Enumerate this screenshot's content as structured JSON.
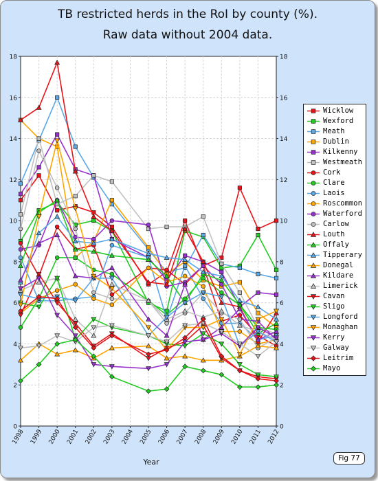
{
  "chart_data": {
    "type": "line",
    "title": "TB restricted herds in the RoI by county (%).",
    "subtitle": "Raw data without 2004 data.",
    "xlabel": "Year",
    "ylabel": "",
    "xlim": [
      1998,
      2012
    ],
    "ylim": [
      0,
      18
    ],
    "x_ticks": [
      "1998",
      "1999",
      "2000",
      "2001",
      "2002",
      "2003",
      "2004",
      "2005",
      "2006",
      "2007",
      "2008",
      "2009",
      "2010",
      "2011",
      "2012"
    ],
    "y_ticks": [
      "0",
      "2",
      "4",
      "6",
      "8",
      "10",
      "12",
      "14",
      "16",
      "18"
    ],
    "x": [
      1998,
      1999,
      2000,
      2001,
      2002,
      2003,
      2005,
      2006,
      2007,
      2008,
      2009,
      2010,
      2011,
      2012
    ],
    "grid": true,
    "legend_position": "right",
    "series": [
      {
        "name": "Wicklow",
        "color": "#e8141a",
        "marker": "square",
        "values": [
          11.0,
          12.2,
          10.5,
          10.7,
          10.4,
          9.7,
          6.9,
          7.5,
          10.0,
          7.8,
          8.2,
          11.6,
          9.6,
          10.0
        ]
      },
      {
        "name": "Wexford",
        "color": "#22cc22",
        "marker": "square",
        "values": [
          9.0,
          10.5,
          10.9,
          9.8,
          10.0,
          9.5,
          6.0,
          5.6,
          9.5,
          9.2,
          7.7,
          7.8,
          9.3,
          7.6
        ]
      },
      {
        "name": "Meath",
        "color": "#5aa7e6",
        "marker": "square",
        "values": [
          11.8,
          13.9,
          16.0,
          13.6,
          12.1,
          10.8,
          8.6,
          7.5,
          7.7,
          9.3,
          7.9,
          7.7,
          7.4,
          7.2
        ]
      },
      {
        "name": "Dublin",
        "color": "#ffa500",
        "marker": "square",
        "values": [
          14.9,
          14.0,
          13.6,
          8.2,
          9.0,
          11.0,
          8.7,
          7.4,
          8.0,
          7.1,
          6.8,
          7.0,
          5.5,
          4.8
        ]
      },
      {
        "name": "Kilkenny",
        "color": "#9932cc",
        "marker": "square",
        "values": [
          11.3,
          12.6,
          14.2,
          12.5,
          12.2,
          9.1,
          8.2,
          7.1,
          8.3,
          8.0,
          7.5,
          5.8,
          6.5,
          6.4
        ]
      },
      {
        "name": "Westmeath",
        "color": "#c0c0c0",
        "marker": "square",
        "values": [
          10.3,
          14.0,
          10.8,
          11.2,
          12.2,
          11.9,
          9.6,
          9.7,
          9.7,
          10.2,
          7.9,
          6.5,
          4.8,
          4.5
        ]
      },
      {
        "name": "Cork",
        "color": "#e8141a",
        "marker": "circle",
        "values": [
          8.9,
          7.3,
          9.7,
          8.6,
          8.8,
          6.4,
          7.7,
          7.6,
          6.9,
          7.8,
          5.1,
          5.4,
          4.4,
          3.9
        ]
      },
      {
        "name": "Clare",
        "color": "#22cc22",
        "marker": "circle",
        "values": [
          4.8,
          6.2,
          8.2,
          8.2,
          7.6,
          7.4,
          6.1,
          5.4,
          6.2,
          7.2,
          6.5,
          5.9,
          4.8,
          4.7
        ]
      },
      {
        "name": "Laois",
        "color": "#5aa7e6",
        "marker": "circle",
        "values": [
          8.2,
          6.1,
          6.1,
          6.2,
          6.3,
          8.8,
          8.2,
          5.2,
          7.8,
          6.2,
          5.0,
          5.0,
          4.2,
          4.4
        ]
      },
      {
        "name": "Roscommon",
        "color": "#ffa500",
        "marker": "circle",
        "values": [
          5.5,
          6.2,
          6.6,
          6.9,
          6.2,
          5.9,
          7.7,
          7.0,
          7.3,
          6.8,
          4.6,
          4.6,
          4.0,
          4.2
        ]
      },
      {
        "name": "Waterford",
        "color": "#9932cc",
        "marker": "circle",
        "values": [
          8.6,
          8.8,
          11.0,
          9.2,
          9.1,
          10.0,
          9.8,
          6.8,
          7.0,
          7.8,
          6.9,
          5.2,
          5.1,
          4.2
        ]
      },
      {
        "name": "Carlow",
        "color": "#c0c0c0",
        "marker": "circle",
        "values": [
          9.6,
          13.4,
          11.6,
          9.6,
          6.5,
          6.2,
          6.1,
          5.0,
          5.5,
          6.5,
          5.5,
          5.2,
          3.8,
          4.3
        ]
      },
      {
        "name": "Louth",
        "color": "#e8141a",
        "marker": "triangle-up",
        "values": [
          14.9,
          15.5,
          17.7,
          12.4,
          10.2,
          9.5,
          7.0,
          6.9,
          9.6,
          8.0,
          6.0,
          5.8,
          4.1,
          5.5
        ]
      },
      {
        "name": "Offaly",
        "color": "#22cc22",
        "marker": "triangle-up",
        "values": [
          7.8,
          10.4,
          11.0,
          8.6,
          8.5,
          8.3,
          8.1,
          7.3,
          6.0,
          7.4,
          7.1,
          5.9,
          4.5,
          5.0
        ]
      },
      {
        "name": "Tipperary",
        "color": "#5aa7e6",
        "marker": "triangle-up",
        "values": [
          7.0,
          9.4,
          10.2,
          9.0,
          8.9,
          9.1,
          8.4,
          8.2,
          8.1,
          7.5,
          7.3,
          6.1,
          5.8,
          5.2
        ]
      },
      {
        "name": "Donegal",
        "color": "#ffa500",
        "marker": "triangle-up",
        "values": [
          3.2,
          4.0,
          3.5,
          3.7,
          3.3,
          3.8,
          3.9,
          3.3,
          3.4,
          3.2,
          3.2,
          3.4,
          3.9,
          3.8
        ]
      },
      {
        "name": "Kildare",
        "color": "#9932cc",
        "marker": "triangle-up",
        "values": [
          7.1,
          8.9,
          9.3,
          7.3,
          7.2,
          7.7,
          5.2,
          4.4,
          6.9,
          4.2,
          4.8,
          5.7,
          4.2,
          4.6
        ]
      },
      {
        "name": "Limerick",
        "color": "#c0c0c0",
        "marker": "triangle-up",
        "values": [
          6.6,
          7.0,
          7.2,
          5.2,
          4.4,
          6.9,
          6.1,
          5.2,
          5.6,
          5.3,
          5.6,
          4.9,
          4.6,
          4.2
        ]
      },
      {
        "name": "Cavan",
        "color": "#e8141a",
        "marker": "triangle-down",
        "values": [
          5.4,
          7.4,
          6.0,
          5.0,
          3.9,
          4.5,
          3.3,
          3.8,
          4.1,
          4.9,
          3.3,
          2.7,
          2.4,
          2.3
        ]
      },
      {
        "name": "Sligo",
        "color": "#22cc22",
        "marker": "triangle-down",
        "values": [
          6.0,
          5.8,
          7.2,
          4.2,
          5.2,
          4.8,
          4.4,
          4.0,
          3.9,
          4.5,
          4.0,
          3.0,
          2.5,
          2.4
        ]
      },
      {
        "name": "Longford",
        "color": "#5aa7e6",
        "marker": "triangle-down",
        "values": [
          6.4,
          6.2,
          6.3,
          6.1,
          7.2,
          7.2,
          4.4,
          5.3,
          6.0,
          6.5,
          6.3,
          3.9,
          4.6,
          4.1
        ]
      },
      {
        "name": "Monaghan",
        "color": "#ffa500",
        "marker": "triangle-down",
        "values": [
          5.9,
          10.2,
          13.9,
          10.6,
          7.3,
          6.7,
          4.8,
          3.7,
          4.8,
          4.8,
          5.2,
          3.5,
          5.2,
          5.6
        ]
      },
      {
        "name": "Kerry",
        "color": "#9932cc",
        "marker": "triangle-down",
        "values": [
          6.7,
          7.2,
          5.4,
          4.4,
          3.0,
          2.9,
          2.8,
          3.0,
          4.1,
          4.2,
          4.5,
          3.9,
          4.8,
          4.3
        ]
      },
      {
        "name": "Galway",
        "color": "#c0c0c0",
        "marker": "triangle-down",
        "values": [
          3.8,
          3.9,
          4.4,
          4.1,
          4.8,
          4.9,
          4.4,
          4.1,
          4.9,
          5.0,
          4.6,
          4.0,
          3.4,
          4.1
        ]
      },
      {
        "name": "Leitrim",
        "color": "#e8141a",
        "marker": "diamond",
        "values": [
          5.6,
          6.3,
          6.2,
          4.8,
          3.8,
          4.4,
          3.5,
          3.7,
          4.3,
          5.2,
          3.4,
          2.7,
          2.3,
          2.2
        ]
      },
      {
        "name": "Mayo",
        "color": "#22cc22",
        "marker": "diamond",
        "values": [
          2.2,
          3.0,
          4.0,
          4.2,
          3.4,
          2.4,
          1.7,
          1.8,
          2.9,
          2.7,
          2.5,
          1.9,
          1.9,
          2.0
        ]
      }
    ]
  },
  "badge": "Fig 77"
}
